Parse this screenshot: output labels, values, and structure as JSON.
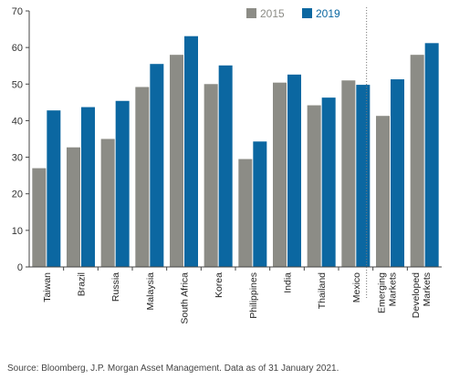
{
  "chart_data": {
    "type": "bar",
    "categories": [
      "Taiwan",
      "Brazil",
      "Russia",
      "Malaysia",
      "South Africa",
      "Korea",
      "Philippines",
      "India",
      "Thailand",
      "Mexico",
      "Emerging Markets",
      "Developed Markets"
    ],
    "category_lines": [
      [
        "Taiwan"
      ],
      [
        "Brazil"
      ],
      [
        "Russia"
      ],
      [
        "Malaysia"
      ],
      [
        "South Africa"
      ],
      [
        "Korea"
      ],
      [
        "Philippines"
      ],
      [
        "India"
      ],
      [
        "Thailand"
      ],
      [
        "Mexico"
      ],
      [
        "Emerging",
        "Markets"
      ],
      [
        "Developed",
        "Markets"
      ]
    ],
    "series": [
      {
        "name": "2015",
        "color": "#8c8c86",
        "values": [
          27,
          32.7,
          35,
          49.2,
          58,
          50,
          29.5,
          50.4,
          44.2,
          51,
          41.3,
          58
        ]
      },
      {
        "name": "2019",
        "color": "#0b67a1",
        "values": [
          42.8,
          43.7,
          45.4,
          55.5,
          63.1,
          55.1,
          34.3,
          52.6,
          46.3,
          49.8,
          51.3,
          61.2
        ]
      }
    ],
    "ylim": [
      0,
      70
    ],
    "yticks": [
      0,
      10,
      20,
      30,
      40,
      50,
      60,
      70
    ],
    "divider_after_index": 9,
    "legend_position": "top-right",
    "grid": false
  },
  "source_note": "Source: Bloomberg, J.P. Morgan Asset Management. Data as of 31 January 2021."
}
